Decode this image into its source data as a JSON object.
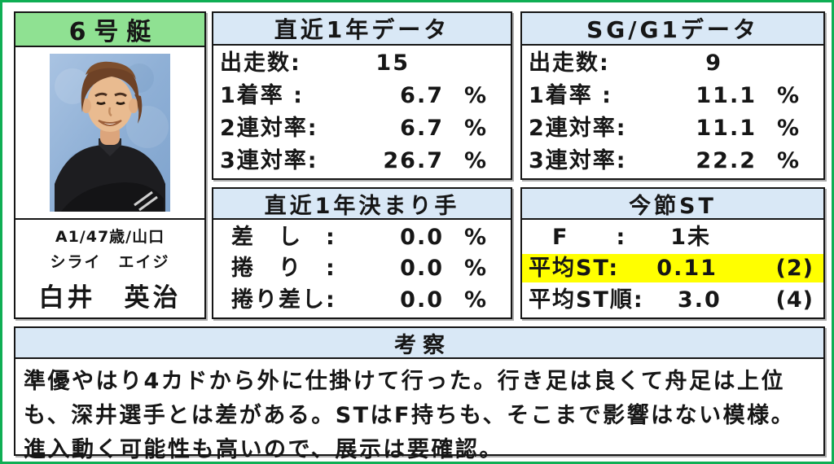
{
  "theme": {
    "frame-green": "#0fae54",
    "boat-green": "#8fe192",
    "header-blue": "#d9e8f6",
    "highlight-yellow": "#ffff00"
  },
  "racer": {
    "boat_label": "6号艇",
    "class_age_branch": "A1/47歳/山口",
    "name_kana": "シライ　エイジ",
    "name": "白井　英治"
  },
  "recent_year": {
    "title": "直近1年データ",
    "rows": [
      {
        "label": "出走数:",
        "value": "15",
        "unit": ""
      },
      {
        "label": "1着率 :",
        "value": "6.7",
        "unit": "%"
      },
      {
        "label": "2連対率:",
        "value": "6.7",
        "unit": "%"
      },
      {
        "label": "3連対率:",
        "value": "26.7",
        "unit": "%"
      }
    ]
  },
  "sg_g1": {
    "title": "SG/G1データ",
    "rows": [
      {
        "label": "出走数:",
        "value": "9",
        "unit": ""
      },
      {
        "label": "1着率 :",
        "value": "11.1",
        "unit": "%"
      },
      {
        "label": "2連対率:",
        "value": "11.1",
        "unit": "%"
      },
      {
        "label": "3連対率:",
        "value": "22.2",
        "unit": "%"
      }
    ]
  },
  "kimarite": {
    "title": "直近1年決まり手",
    "rows": [
      {
        "label": "差　し　:",
        "value": "0.0",
        "unit": "%"
      },
      {
        "label": "捲　り　:",
        "value": "0.0",
        "unit": "%"
      },
      {
        "label": "捲り差し:",
        "value": "0.0",
        "unit": "%"
      }
    ]
  },
  "st": {
    "title": "今節ST",
    "rows": [
      {
        "label": "　F　　:",
        "value": "1未",
        "rank": "",
        "highlight": false
      },
      {
        "label": "平均ST:",
        "value": "0.11",
        "rank": "(2)",
        "highlight": true
      },
      {
        "label": "平均ST順:",
        "value": "3.0",
        "rank": "(4)",
        "highlight": false
      }
    ]
  },
  "analysis": {
    "title": "考察",
    "text": "準優やはり4カドから外に仕掛けて行った。行き足は良くて舟足は上位も、深井選手とは差がある。STはF持ちも、そこまで影響はない模様。進入動く可能性も高いので、展示は要確認。"
  }
}
